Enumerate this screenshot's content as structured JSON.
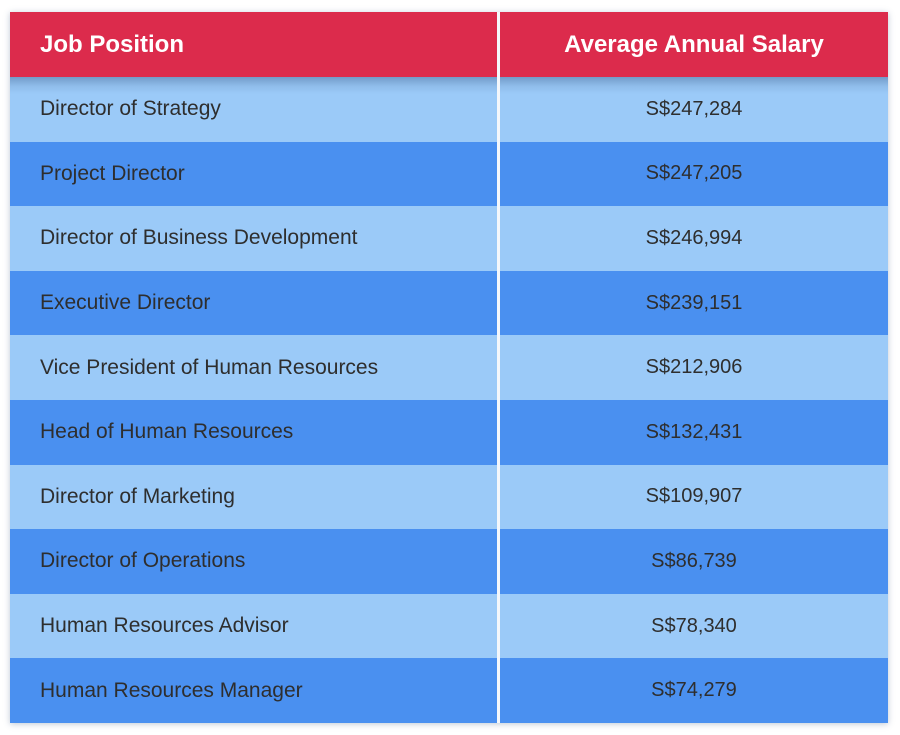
{
  "table": {
    "columns": [
      "Job Position",
      "Average Annual Salary"
    ],
    "rows": [
      {
        "position": "Director of Strategy",
        "salary": "S$247,284"
      },
      {
        "position": "Project Director",
        "salary": "S$247,205"
      },
      {
        "position": "Director of Business Development",
        "salary": "S$246,994"
      },
      {
        "position": "Executive Director",
        "salary": "S$239,151"
      },
      {
        "position": "Vice President of Human Resources",
        "salary": "S$212,906"
      },
      {
        "position": "Head of Human Resources",
        "salary": "S$132,431"
      },
      {
        "position": "Director of Marketing",
        "salary": "S$109,907"
      },
      {
        "position": "Director of Operations",
        "salary": "S$86,739"
      },
      {
        "position": "Human Resources Advisor",
        "salary": "S$78,340"
      },
      {
        "position": "Human Resources Manager",
        "salary": "S$74,279"
      }
    ]
  },
  "colors": {
    "header_bg": "#DC2B4C",
    "header_text": "#FFFFFF",
    "row_light": "#9BCAF8",
    "row_dark": "#4A90F0",
    "row_text": "#2E2E2E",
    "divider": "#F4F7FB"
  },
  "chart_data": {
    "type": "table",
    "title": "",
    "columns": [
      "Job Position",
      "Average Annual Salary"
    ],
    "categories": [
      "Director of Strategy",
      "Project Director",
      "Director of Business Development",
      "Executive Director",
      "Vice President of Human Resources",
      "Head of Human Resources",
      "Director of Marketing",
      "Director of Operations",
      "Human Resources Advisor",
      "Human Resources Manager"
    ],
    "values": [
      247284,
      247205,
      246994,
      239151,
      212906,
      132431,
      109907,
      86739,
      78340,
      74279
    ],
    "currency": "SGD",
    "value_prefix": "S$"
  }
}
